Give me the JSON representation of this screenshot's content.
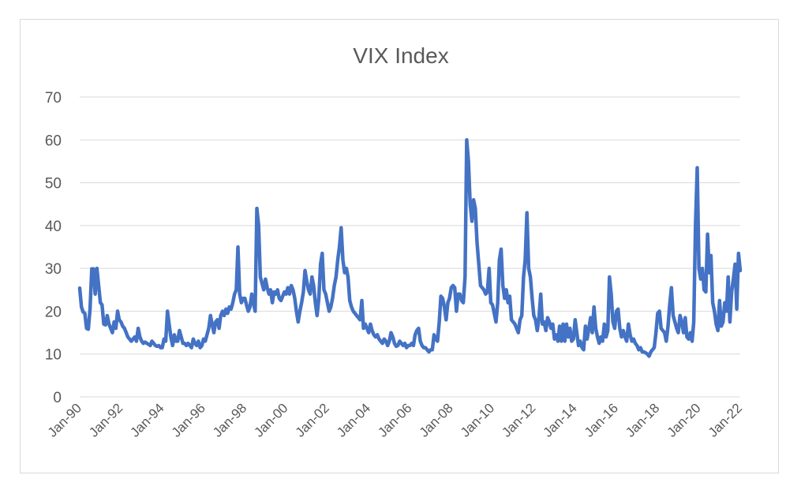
{
  "chart_data": {
    "type": "line",
    "title": "VIX Index",
    "xlabel": "",
    "ylabel": "",
    "ylim": [
      0,
      70
    ],
    "yticks": [
      0,
      10,
      20,
      30,
      40,
      50,
      60,
      70
    ],
    "xtick_labels": [
      "Jan-90",
      "Jan-92",
      "Jan-94",
      "Jan-96",
      "Jan-98",
      "Jan-00",
      "Jan-02",
      "Jan-04",
      "Jan-06",
      "Jan-08",
      "Jan-10",
      "Jan-12",
      "Jan-14",
      "Jan-16",
      "Jan-18",
      "Jan-20",
      "Jan-22"
    ],
    "x_start": "1990-01",
    "x_end": "2022-04",
    "grid": true,
    "legend": "none",
    "color": "#4472c4",
    "frequency": "monthly",
    "series": [
      {
        "values": [
          25.4,
          21.0,
          19.8,
          19.5,
          16.0,
          15.8,
          20.5,
          29.9,
          29.9,
          24.0,
          30.0,
          26.0,
          22.0,
          21.5,
          17.0,
          16.8,
          19.0,
          17.0,
          16.0,
          15.0,
          17.5,
          16.0,
          20.0,
          18.0,
          17.5,
          16.5,
          16.0,
          15.0,
          14.0,
          13.5,
          13.0,
          13.5,
          14.0,
          13.0,
          16.0,
          14.0,
          13.0,
          12.5,
          12.8,
          12.5,
          12.3,
          12.0,
          13.0,
          12.5,
          12.0,
          11.8,
          12.0,
          11.5,
          11.5,
          13.5,
          13.0,
          20.0,
          17.0,
          14.0,
          12.0,
          14.5,
          13.0,
          13.0,
          15.5,
          14.0,
          12.5,
          12.5,
          12.0,
          12.5,
          12.0,
          11.5,
          13.5,
          12.5,
          12.0,
          13.0,
          11.5,
          12.0,
          13.5,
          13.0,
          14.5,
          16.0,
          19.0,
          17.0,
          15.0,
          17.5,
          18.0,
          16.0,
          19.0,
          20.0,
          19.0,
          20.5,
          19.5,
          21.0,
          20.5,
          22.0,
          24.0,
          25.0,
          35.0,
          24.0,
          22.0,
          23.0,
          23.0,
          21.5,
          20.0,
          21.0,
          24.0,
          22.0,
          20.0,
          44.0,
          40.0,
          28.0,
          26.5,
          25.0,
          27.5,
          25.5,
          24.0,
          25.0,
          22.0,
          24.5,
          24.0,
          25.0,
          23.0,
          22.5,
          23.5,
          24.5,
          24.0,
          25.5,
          24.0,
          26.0,
          25.0,
          23.0,
          20.0,
          17.5,
          20.0,
          22.0,
          24.5,
          29.5,
          27.0,
          25.0,
          24.0,
          28.0,
          26.0,
          22.0,
          19.0,
          23.0,
          31.0,
          33.5,
          25.0,
          24.0,
          22.0,
          20.0,
          21.0,
          23.0,
          26.0,
          28.0,
          32.0,
          35.0,
          39.5,
          32.0,
          29.0,
          30.0,
          28.0,
          22.5,
          21.0,
          20.0,
          19.5,
          19.0,
          18.5,
          18.0,
          22.5,
          16.0,
          17.0,
          16.0,
          15.0,
          17.0,
          15.5,
          14.5,
          14.0,
          14.5,
          13.5,
          13.0,
          12.5,
          13.5,
          13.0,
          12.0,
          13.0,
          15.0,
          14.0,
          12.5,
          11.8,
          12.0,
          13.0,
          12.5,
          12.0,
          12.5,
          11.5,
          12.0,
          12.0,
          12.5,
          12.0,
          14.5,
          15.5,
          16.0,
          13.0,
          12.0,
          11.5,
          11.5,
          11.0,
          10.5,
          11.0,
          11.0,
          14.5,
          13.5,
          13.0,
          17.5,
          23.5,
          23.0,
          21.0,
          18.0,
          22.0,
          23.0,
          25.5,
          26.0,
          25.5,
          20.0,
          24.0,
          24.0,
          22.5,
          22.0,
          28.0,
          60.0,
          55.0,
          45.0,
          41.0,
          46.0,
          44.0,
          36.0,
          31.0,
          26.0,
          25.5,
          25.0,
          24.0,
          24.5,
          30.0,
          22.0,
          21.5,
          19.5,
          17.5,
          22.0,
          32.0,
          34.5,
          26.0,
          23.0,
          25.0,
          22.0,
          23.5,
          18.0,
          17.5,
          17.0,
          16.0,
          15.0,
          18.0,
          19.0,
          28.0,
          32.0,
          43.0,
          30.0,
          28.0,
          23.0,
          19.0,
          18.0,
          15.5,
          18.5,
          24.0,
          17.0,
          17.5,
          15.5,
          18.5,
          17.5,
          16.0,
          17.0,
          13.5,
          14.5,
          13.0,
          16.5,
          13.0,
          17.0,
          13.0,
          17.0,
          14.0,
          16.0,
          13.0,
          13.5,
          18.0,
          15.0,
          12.0,
          13.0,
          11.5,
          11.0,
          16.5,
          13.5,
          16.0,
          18.5,
          15.0,
          21.0,
          16.0,
          14.0,
          12.5,
          14.0,
          13.0,
          17.0,
          14.0,
          15.5,
          28.0,
          24.0,
          17.5,
          16.0,
          20.0,
          20.5,
          16.0,
          14.0,
          15.5,
          14.0,
          13.0,
          17.0,
          14.5,
          13.0,
          13.5,
          12.5,
          12.0,
          11.0,
          11.5,
          10.5,
          10.5,
          10.3,
          10.0,
          9.5,
          10.5,
          11.0,
          11.5,
          15.0,
          19.5,
          20.0,
          16.0,
          15.5,
          15.0,
          13.0,
          16.5,
          21.5,
          25.5,
          19.0,
          17.5,
          16.0,
          15.0,
          19.0,
          17.5,
          15.0,
          18.5,
          14.0,
          13.5,
          15.0,
          13.0,
          17.5,
          40.0,
          53.5,
          30.0,
          27.5,
          30.0,
          25.0,
          24.5,
          38.0,
          29.0,
          33.0,
          22.0,
          20.0,
          17.0,
          15.5,
          22.5,
          16.5,
          17.5,
          22.0,
          20.0,
          28.0,
          17.5,
          24.5,
          27.5,
          31.0,
          20.5,
          33.5,
          29.5
        ]
      }
    ]
  }
}
